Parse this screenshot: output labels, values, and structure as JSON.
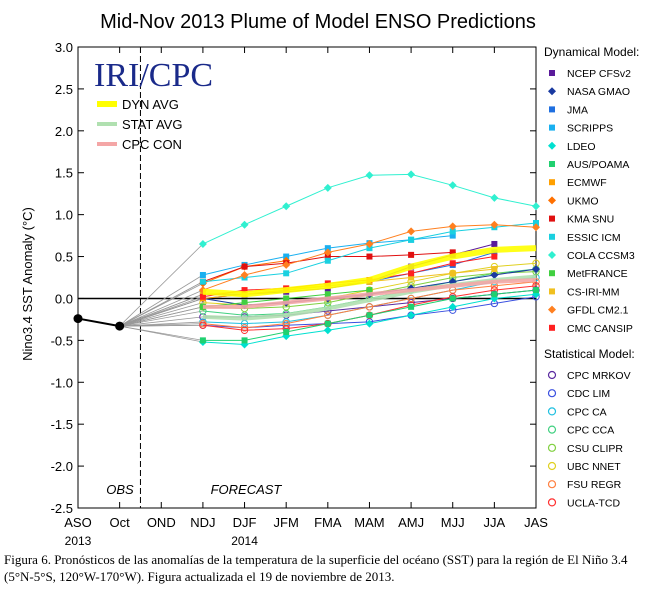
{
  "chart_data": {
    "type": "line",
    "title": "Mid-Nov 2013 Plume of Model ENSO Predictions",
    "ylabel": "Nino3.4 SST Anomaly (°C)",
    "ylim": [
      -2.5,
      3.0
    ],
    "yticks": [
      "3.0",
      "2.5",
      "2.0",
      "1.5",
      "1.0",
      "0.5",
      "0.0",
      "-0.5",
      "-1.0",
      "-1.5",
      "-2.0",
      "-2.5"
    ],
    "categories": [
      "ASO",
      "Oct",
      "OND",
      "NDJ",
      "DJF",
      "JFM",
      "FMA",
      "MAM",
      "AMJ",
      "MJJ",
      "JJA",
      "JAS"
    ],
    "year_labels": [
      {
        "at": "ASO",
        "text": "2013"
      },
      {
        "at": "DJF",
        "text": "2014"
      }
    ],
    "region_labels": {
      "obs": "OBS",
      "forecast": "FORECAST"
    },
    "logo": "IRI/CPC",
    "observed": {
      "categories": [
        "ASO",
        "Oct"
      ],
      "values": [
        -0.24,
        -0.33
      ]
    },
    "inset_legend": [
      {
        "name": "DYN AVG",
        "color": "#ffff00"
      },
      {
        "name": "STAT AVG",
        "color": "#b0e0b0"
      },
      {
        "name": "CPC CON",
        "color": "#f4a6a6"
      }
    ],
    "legend_headers": {
      "dynamical": "Dynamical Model:",
      "statistical": "Statistical Model:"
    },
    "dynamical": [
      {
        "name": "NCEP CFSv2",
        "color": "#5a1a9a",
        "values": [
          0.05,
          0.05,
          0.08,
          0.12,
          0.2,
          0.38,
          0.52,
          0.65,
          null
        ]
      },
      {
        "name": "NASA GMAO",
        "color": "#1a3aa0",
        "values": [
          0.0,
          -0.08,
          -0.05,
          0.0,
          0.05,
          0.12,
          0.2,
          0.28,
          0.35
        ]
      },
      {
        "name": "JMA",
        "color": "#1f6fe0",
        "values": [
          0.0,
          0.05,
          0.1,
          0.15,
          0.2,
          0.3,
          0.4,
          0.55,
          null
        ]
      },
      {
        "name": "SCRIPPS",
        "color": "#1ab0f0",
        "values": [
          0.28,
          0.4,
          0.5,
          0.6,
          0.66,
          0.7,
          0.75,
          null,
          null
        ]
      },
      {
        "name": "LDEO",
        "color": "#00e0d0",
        "values": [
          -0.52,
          -0.55,
          -0.45,
          -0.38,
          -0.3,
          -0.2,
          -0.1,
          0.0,
          0.05
        ]
      },
      {
        "name": "AUS/POAMA",
        "color": "#20d070",
        "values": [
          -0.5,
          -0.5,
          -0.4,
          -0.3,
          -0.2,
          -0.1,
          0.0,
          0.05,
          0.1
        ]
      },
      {
        "name": "ECMWF",
        "color": "#ffa000",
        "values": [
          0.0,
          0.05,
          0.1,
          0.15,
          0.2,
          null,
          null,
          null,
          null
        ]
      },
      {
        "name": "UKMO",
        "color": "#ff7000",
        "values": [
          0.18,
          0.38,
          0.45,
          null,
          null,
          null,
          null,
          null,
          null
        ]
      },
      {
        "name": "KMA SNU",
        "color": "#e01010",
        "values": [
          0.2,
          0.38,
          0.42,
          0.5,
          0.5,
          0.52,
          0.55,
          null,
          null
        ]
      },
      {
        "name": "ESSIC ICM",
        "color": "#1ad0e0",
        "values": [
          0.2,
          0.25,
          0.3,
          0.45,
          0.6,
          0.7,
          0.8,
          0.85,
          0.9
        ]
      },
      {
        "name": "COLA CCSM3",
        "color": "#30f0d0",
        "values": [
          0.65,
          0.88,
          1.1,
          1.32,
          1.47,
          1.48,
          1.35,
          1.2,
          1.1
        ]
      },
      {
        "name": "MetFRANCE",
        "color": "#40d040",
        "values": [
          -0.1,
          -0.05,
          0.0,
          0.05,
          0.1,
          null,
          null,
          null,
          null
        ]
      },
      {
        "name": "CS-IRI-MM",
        "color": "#f0c020",
        "values": [
          0.05,
          0.08,
          0.12,
          0.15,
          0.2,
          0.25,
          0.3,
          0.35,
          null
        ]
      },
      {
        "name": "GFDL CM2.1",
        "color": "#ff8020",
        "values": [
          0.1,
          0.28,
          0.4,
          0.55,
          0.65,
          0.8,
          0.86,
          0.88,
          0.85
        ]
      },
      {
        "name": "CMC CANSIP",
        "color": "#ff2020",
        "values": [
          0.02,
          0.1,
          0.12,
          0.18,
          0.22,
          0.3,
          0.42,
          0.5,
          null
        ]
      }
    ],
    "statistical": [
      {
        "name": "CPC MRKOV",
        "color": "#5a2aa0",
        "values": [
          -0.22,
          -0.22,
          -0.2,
          -0.15,
          -0.1,
          -0.05,
          0.0,
          0.05,
          0.1
        ]
      },
      {
        "name": "CDC LIM",
        "color": "#3a50e0",
        "values": [
          -0.32,
          -0.35,
          -0.32,
          -0.3,
          -0.28,
          -0.2,
          -0.14,
          -0.06,
          0.02
        ]
      },
      {
        "name": "CPC CA",
        "color": "#20c0e0",
        "values": [
          -0.28,
          -0.3,
          -0.28,
          -0.2,
          -0.1,
          0.0,
          0.1,
          0.2,
          0.25
        ]
      },
      {
        "name": "CPC CCA",
        "color": "#40d080",
        "values": [
          -0.15,
          -0.2,
          -0.18,
          -0.1,
          0.0,
          0.1,
          0.2,
          0.3,
          0.35
        ]
      },
      {
        "name": "CSU CLIPR",
        "color": "#80d040",
        "values": [
          -0.1,
          -0.12,
          -0.1,
          -0.05,
          0.05,
          0.15,
          0.25,
          0.3,
          0.32
        ]
      },
      {
        "name": "UBC NNET",
        "color": "#e0d020",
        "values": [
          -0.05,
          -0.08,
          -0.05,
          0.0,
          0.1,
          0.2,
          0.3,
          0.38,
          0.42
        ]
      },
      {
        "name": "FSU REGR",
        "color": "#ff8040",
        "values": [
          -0.3,
          -0.35,
          -0.3,
          -0.2,
          -0.1,
          0.0,
          0.1,
          0.15,
          0.2
        ]
      },
      {
        "name": "UCLA-TCD",
        "color": "#ff3030",
        "values": [
          -0.32,
          -0.38,
          -0.36,
          -0.3,
          -0.2,
          -0.08,
          0.02,
          0.1,
          0.15
        ]
      }
    ],
    "averages": [
      {
        "name": "DYN AVG",
        "color": "#ffff00",
        "values": [
          0.08,
          0.05,
          0.1,
          0.15,
          0.22,
          0.38,
          0.5,
          0.58,
          0.6
        ]
      },
      {
        "name": "STAT AVG",
        "color": "#b0e0b0",
        "values": [
          -0.22,
          -0.24,
          -0.2,
          -0.12,
          -0.02,
          0.08,
          0.16,
          0.22,
          0.26
        ]
      },
      {
        "name": "CPC CON",
        "color": "#f4a6a6",
        "values": [
          -0.1,
          -0.1,
          -0.05,
          0.0,
          0.05,
          0.1,
          0.15,
          0.2,
          0.22
        ]
      }
    ]
  },
  "caption": "Figura 6. Pronósticos de las anomalías de la temperatura de la superficie del océano (SST) para la región de El Niño 3.4 (5°N-5°S, 120°W-170°W). Figura actualizada el 19 de noviembre de 2013."
}
